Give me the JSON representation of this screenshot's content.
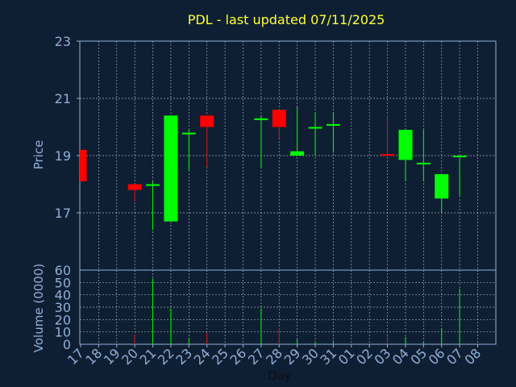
{
  "title": "PDL - last updated 07/11/2025",
  "colors": {
    "background": "#0f1f33",
    "title": "#ffff33",
    "axis_text": "#8fb0d8",
    "frame": "#8fb0d8",
    "grid": "#d0d8e4",
    "up": "#00ff00",
    "down": "#ff0000"
  },
  "chart_data": [
    {
      "type": "candlestick",
      "ylabel": "Price",
      "ylim": [
        15,
        23
      ],
      "yticks": [
        17,
        19,
        21,
        23
      ],
      "grid": true,
      "x_categories": [
        "17",
        "18",
        "19",
        "20",
        "21",
        "22",
        "23",
        "24",
        "25",
        "26",
        "27",
        "28",
        "29",
        "30",
        "31",
        "01",
        "02",
        "03",
        "04",
        "05",
        "06",
        "07",
        "08"
      ],
      "candles": [
        {
          "day": "17",
          "open": 19.2,
          "high": 19.2,
          "low": 18.1,
          "close": 18.1
        },
        {
          "day": "20",
          "open": 18.0,
          "high": 18.0,
          "low": 17.4,
          "close": 17.8
        },
        {
          "day": "21",
          "open": 18.0,
          "high": 18.1,
          "low": 16.4,
          "close": 18.0
        },
        {
          "day": "22",
          "open": 16.7,
          "high": 20.4,
          "low": 16.7,
          "close": 20.4
        },
        {
          "day": "23",
          "open": 19.8,
          "high": 19.9,
          "low": 18.5,
          "close": 19.8
        },
        {
          "day": "24",
          "open": 20.4,
          "high": 20.4,
          "low": 18.6,
          "close": 20.0
        },
        {
          "day": "27",
          "open": 20.3,
          "high": 20.4,
          "low": 18.6,
          "close": 20.3
        },
        {
          "day": "28",
          "open": 20.6,
          "high": 20.6,
          "low": 19.6,
          "close": 20.0
        },
        {
          "day": "29",
          "open": 19.0,
          "high": 20.7,
          "low": 19.0,
          "close": 19.15
        },
        {
          "day": "30",
          "open": 20.0,
          "high": 20.5,
          "low": 19.0,
          "close": 20.0
        },
        {
          "day": "31",
          "open": 20.1,
          "high": 20.5,
          "low": 19.1,
          "close": 20.1
        },
        {
          "day": "03",
          "open": 19.05,
          "high": 20.4,
          "low": 19.0,
          "close": 19.0
        },
        {
          "day": "04",
          "open": 18.85,
          "high": 19.9,
          "low": 18.1,
          "close": 19.9
        },
        {
          "day": "05",
          "open": 18.75,
          "high": 19.9,
          "low": 18.1,
          "close": 18.75
        },
        {
          "day": "06",
          "open": 17.5,
          "high": 18.35,
          "low": 17.0,
          "close": 18.35
        },
        {
          "day": "07",
          "open": 19.0,
          "high": 19.0,
          "low": 17.6,
          "close": 19.0
        }
      ]
    },
    {
      "type": "bar",
      "ylabel": "Volume (0000)",
      "xlabel": "Day",
      "ylim": [
        0,
        60
      ],
      "yticks": [
        0,
        10,
        20,
        30,
        40,
        50,
        60
      ],
      "grid": true,
      "categories": [
        "17",
        "18",
        "19",
        "20",
        "21",
        "22",
        "23",
        "24",
        "25",
        "26",
        "27",
        "28",
        "29",
        "30",
        "31",
        "01",
        "02",
        "03",
        "04",
        "05",
        "06",
        "07",
        "08"
      ],
      "bars": [
        {
          "day": "17",
          "value": 0,
          "direction": "down"
        },
        {
          "day": "20",
          "value": 8,
          "direction": "down"
        },
        {
          "day": "21",
          "value": 53,
          "direction": "up"
        },
        {
          "day": "22",
          "value": 29,
          "direction": "up"
        },
        {
          "day": "23",
          "value": 5,
          "direction": "up"
        },
        {
          "day": "24",
          "value": 9,
          "direction": "down"
        },
        {
          "day": "27",
          "value": 29,
          "direction": "up"
        },
        {
          "day": "28",
          "value": 13,
          "direction": "down"
        },
        {
          "day": "29",
          "value": 4,
          "direction": "up"
        },
        {
          "day": "30",
          "value": 2,
          "direction": "up"
        },
        {
          "day": "31",
          "value": 3,
          "direction": "up"
        },
        {
          "day": "03",
          "value": 7,
          "direction": "down"
        },
        {
          "day": "04",
          "value": 6,
          "direction": "up"
        },
        {
          "day": "05",
          "value": 2,
          "direction": "up"
        },
        {
          "day": "06",
          "value": 13,
          "direction": "up"
        },
        {
          "day": "07",
          "value": 45,
          "direction": "up"
        }
      ]
    }
  ]
}
